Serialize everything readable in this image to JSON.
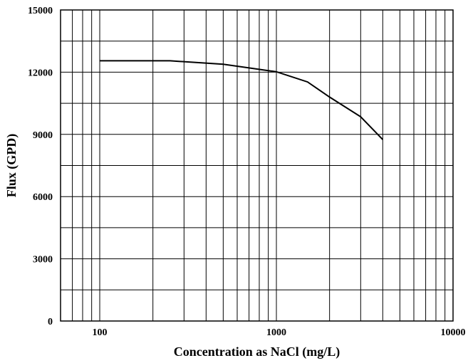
{
  "chart_data": {
    "type": "line",
    "title": "",
    "xlabel": "Concentration as NaCl (mg/L)",
    "ylabel": "Flux (GPD)",
    "x_scale": "log",
    "xlim": [
      60,
      10000
    ],
    "ylim": [
      0,
      15000
    ],
    "grid": true,
    "x_ticks": [
      {
        "value": 100,
        "label": "100"
      },
      {
        "value": 1000,
        "label": "1000"
      },
      {
        "value": 10000,
        "label": "10000"
      }
    ],
    "y_ticks": [
      {
        "value": 0,
        "label": "0"
      },
      {
        "value": 3000,
        "label": "3000"
      },
      {
        "value": 6000,
        "label": "6000"
      },
      {
        "value": 9000,
        "label": "9000"
      },
      {
        "value": 12000,
        "label": "12000"
      },
      {
        "value": 15000,
        "label": "15000"
      }
    ],
    "y_minor_grid": [
      1500,
      4500,
      7500,
      10500,
      13500
    ],
    "series": [
      {
        "color": "#000000",
        "x": [
          100,
          250,
          500,
          1000,
          1500,
          2000,
          3000,
          4000
        ],
        "y": [
          12550,
          12550,
          12380,
          12020,
          11530,
          10800,
          9850,
          8750
        ]
      }
    ]
  }
}
